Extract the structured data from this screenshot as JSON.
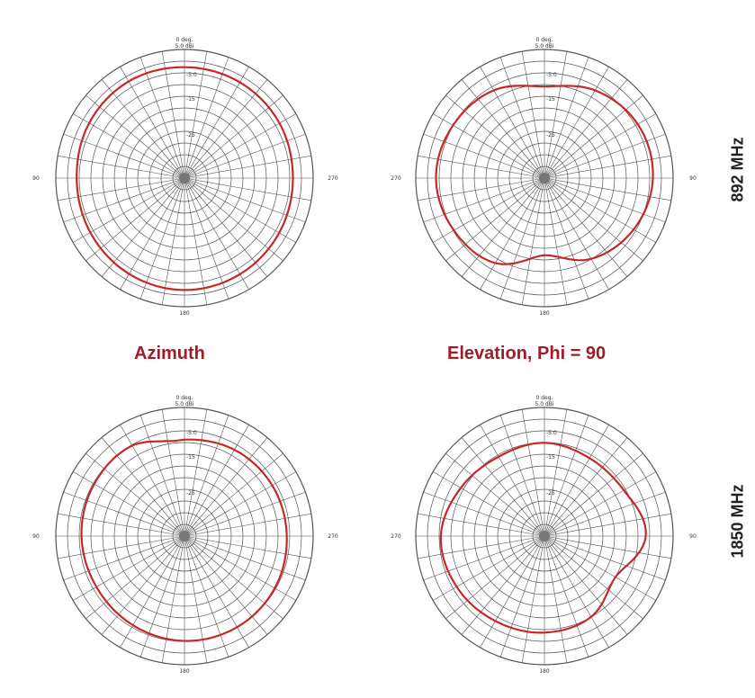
{
  "headings": {
    "azimuth": "Azimuth",
    "elevation": "Elevation, Phi = 90"
  },
  "row_labels": {
    "top": "892 MHz",
    "bottom": "1850 MHz"
  },
  "colors": {
    "trace": "#c62828",
    "grid": "#555555",
    "heading": "#a01c2a"
  },
  "polar_labels": {
    "top_line1": "0 deg.",
    "top_line2": "5.0  dBi",
    "ring_labels": [
      "5.0",
      "-5.0",
      "-15",
      "-25"
    ],
    "bottom": "180"
  },
  "chart_data": [
    {
      "type": "polar",
      "title": "",
      "row": "892 MHz",
      "column": "Azimuth",
      "side_label": "90",
      "other_side_label": "270",
      "r_range_dbi": [
        -35,
        5
      ],
      "angles_deg": [
        0,
        30,
        60,
        90,
        120,
        150,
        180,
        210,
        240,
        270,
        300,
        330
      ],
      "gain_dbi": [
        -0.5,
        -0.3,
        -0.8,
        -1.5,
        -1.2,
        -0.6,
        -0.2,
        -0.5,
        -1.0,
        -1.3,
        -0.9,
        -0.6
      ]
    },
    {
      "type": "polar",
      "title": "",
      "row": "892 MHz",
      "column": "Elevation, Phi = 90",
      "side_label": "270",
      "other_side_label": "90",
      "r_range_dbi": [
        -35,
        5
      ],
      "angles_deg": [
        0,
        30,
        60,
        90,
        120,
        150,
        180,
        210,
        240,
        270,
        300,
        330
      ],
      "gain_dbi": [
        -6.5,
        -3.5,
        -2.2,
        -1.3,
        -2.5,
        -4.5,
        -11,
        -6,
        -3,
        -1.3,
        -1.5,
        -3.5
      ]
    },
    {
      "type": "polar",
      "title": "",
      "row": "1850 MHz",
      "column": "Azimuth",
      "side_label": "90",
      "other_side_label": "270",
      "r_range_dbi": [
        -35,
        5
      ],
      "angles_deg": [
        0,
        10,
        30,
        60,
        90,
        120,
        150,
        180,
        210,
        240,
        270,
        300,
        330
      ],
      "gain_dbi": [
        -5.0,
        -5.0,
        -2.5,
        -2.6,
        -3.0,
        -3.4,
        -3.0,
        -2.4,
        -2.3,
        -2.6,
        -3.2,
        -3.5,
        -4.0
      ]
    },
    {
      "type": "polar",
      "title": "",
      "row": "1850 MHz",
      "column": "Elevation, Phi = 90",
      "side_label": "270",
      "other_side_label": "90",
      "r_range_dbi": [
        -35,
        5
      ],
      "angles_deg": [
        0,
        30,
        60,
        90,
        120,
        150,
        180,
        210,
        240,
        270,
        300,
        330
      ],
      "gain_dbi": [
        -6.0,
        -6.5,
        -5.0,
        -2.8,
        -3.5,
        -4.5,
        -5.0,
        -6.0,
        -9.5,
        -3.5,
        -6.5,
        -7.0
      ]
    }
  ]
}
